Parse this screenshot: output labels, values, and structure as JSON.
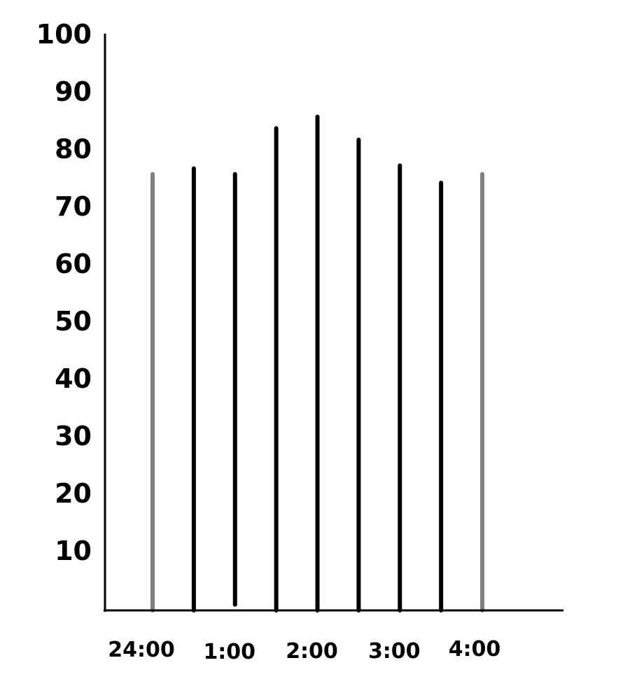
{
  "chart_data": {
    "type": "bar",
    "title": "",
    "xlabel": "",
    "ylabel": "",
    "ylim": [
      0,
      100
    ],
    "y_ticks": [
      {
        "value": 10,
        "label": "10"
      },
      {
        "value": 20,
        "label": "20"
      },
      {
        "value": 30,
        "label": "30"
      },
      {
        "value": 40,
        "label": "40"
      },
      {
        "value": 50,
        "label": "50"
      },
      {
        "value": 60,
        "label": "60"
      },
      {
        "value": 70,
        "label": "70"
      },
      {
        "value": 80,
        "label": "80"
      },
      {
        "value": 90,
        "label": "90"
      },
      {
        "value": 100,
        "label": "100"
      }
    ],
    "x_tick_labels": [
      "24:00",
      "1:00",
      "2:00",
      "3:00",
      "4:00"
    ],
    "x_ticks_minutes": [
      0,
      60,
      120,
      180,
      240
    ],
    "data": [
      {
        "time_minutes": 0,
        "value": 76,
        "style": "gray"
      },
      {
        "time_minutes": 30,
        "value": 77,
        "style": "black"
      },
      {
        "time_minutes": 60,
        "value": 76,
        "style": "black",
        "bottom": 1
      },
      {
        "time_minutes": 90,
        "value": 84,
        "style": "black"
      },
      {
        "time_minutes": 120,
        "value": 86,
        "style": "black"
      },
      {
        "time_minutes": 150,
        "value": 82,
        "style": "black"
      },
      {
        "time_minutes": 180,
        "value": 77.5,
        "style": "black"
      },
      {
        "time_minutes": 210,
        "value": 74.5,
        "style": "black"
      },
      {
        "time_minutes": 240,
        "value": 76,
        "style": "gray"
      }
    ],
    "colors": {
      "gray": "#808080",
      "black": "#000000"
    },
    "grid": false
  }
}
